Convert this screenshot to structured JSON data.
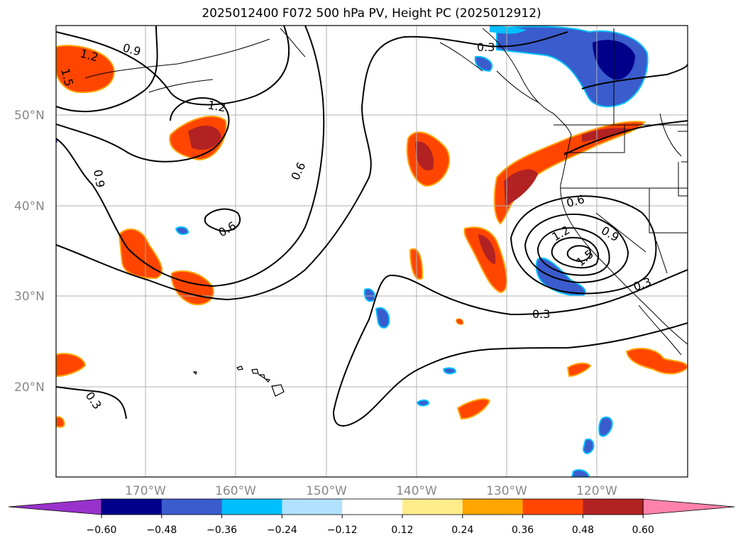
{
  "title": "2025012400 F072 500 hPa PV, Height PC (2025012912)",
  "lat_labels": [
    "50°N",
    "40°N",
    "30°N",
    "20°N"
  ],
  "lon_labels": [
    "170°W",
    "160°W",
    "150°W",
    "140°W",
    "130°W",
    "120°W"
  ],
  "colorbar": {
    "tick_labels": [
      "−0.60",
      "−0.48",
      "−0.36",
      "−0.24",
      "−0.12",
      "0.12",
      "0.24",
      "0.36",
      "0.48",
      "0.60"
    ],
    "colors": [
      "#9932cc",
      "#00008b",
      "#3a5ccc",
      "#00bfff",
      "#b0e2ff",
      "#ffffff",
      "#ffec8b",
      "#ffa500",
      "#ff4500",
      "#b22222",
      "#ff82ab"
    ]
  },
  "contour_labels": [
    "1.2",
    "0.9",
    "1.5",
    "1.2",
    "0.9",
    "0.6",
    "0.6",
    "0.3",
    "0.3",
    "0.6",
    "1.2",
    "0.9",
    "1.5",
    "0.3",
    "0.3"
  ]
}
